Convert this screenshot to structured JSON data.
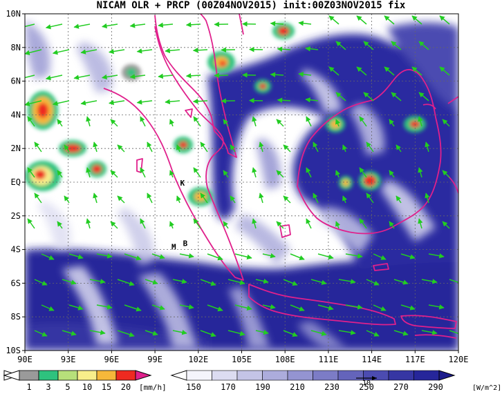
{
  "title": "NICAM OLR + PRCP (00Z04NOV2015) init:00Z03NOV2015 fix",
  "map": {
    "lon_range": [
      90,
      120
    ],
    "lat_range": [
      -10,
      10
    ],
    "x_tick_labels": [
      "90E",
      "93E",
      "96E",
      "99E",
      "102E",
      "105E",
      "108E",
      "111E",
      "114E",
      "117E",
      "120E"
    ],
    "y_tick_labels": [
      "10N",
      "8N",
      "6N",
      "4N",
      "2N",
      "EQ",
      "2S",
      "4S",
      "6S",
      "8S",
      "10S"
    ],
    "markers": [
      {
        "label": "K",
        "lon": 100.9,
        "lat": -0.2
      },
      {
        "label": "M",
        "lon": 100.3,
        "lat": -4.0
      },
      {
        "label": "B",
        "lon": 101.1,
        "lat": -3.8
      }
    ],
    "colors": {
      "coast": "#e0208c",
      "wind": "#22cc22",
      "olr_deep": "#1c1c8c",
      "grid": "#666666"
    }
  },
  "precip_colorbar": {
    "labels": [
      "1",
      "3",
      "5",
      "10",
      "15",
      "20"
    ],
    "unit": "[mm/h]",
    "colors": [
      "#9a9a9a",
      "#2ec27e",
      "#b7e07a",
      "#f8ee8a",
      "#f6b83a",
      "#ee2a20",
      "#e0208c"
    ]
  },
  "olr_colorbar": {
    "labels": [
      "150",
      "170",
      "190",
      "210",
      "230",
      "250",
      "270",
      "290"
    ],
    "unit": "[W/m^2]",
    "reference_vector_label": "10",
    "colors": [
      "#f4f4fb",
      "#dcdcf1",
      "#c4c4e6",
      "#acacdc",
      "#9494d1",
      "#7c7cc6",
      "#6464bb",
      "#4c4cb1",
      "#3636a3",
      "#26269a",
      "#1c1c8c"
    ]
  }
}
